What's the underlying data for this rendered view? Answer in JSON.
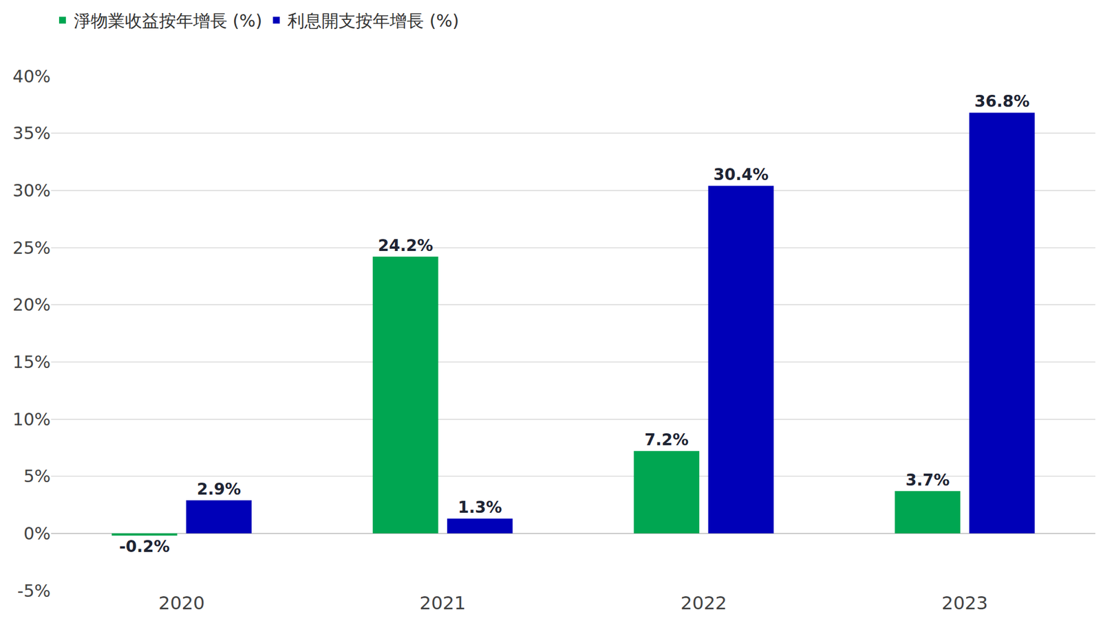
{
  "chart_data": {
    "type": "bar",
    "categories": [
      "2020",
      "2021",
      "2022",
      "2023"
    ],
    "series": [
      {
        "name": "淨物業收益按年增長 (%)",
        "color": "#00a651",
        "values": [
          -0.2,
          24.2,
          7.2,
          3.7
        ],
        "value_labels": [
          "-0.2%",
          "24.2%",
          "7.2%",
          "3.7%"
        ]
      },
      {
        "name": "利息開支按年增長 (%)",
        "color": "#0000b8",
        "values": [
          2.9,
          1.3,
          30.4,
          36.8
        ],
        "value_labels": [
          "2.9%",
          "1.3%",
          "30.4%",
          "36.8%"
        ]
      }
    ],
    "ylim": [
      -5,
      40
    ],
    "yticks": [
      {
        "value": -5,
        "label": "-5%"
      },
      {
        "value": 0,
        "label": "0%"
      },
      {
        "value": 5,
        "label": "5%"
      },
      {
        "value": 10,
        "label": "10%"
      },
      {
        "value": 15,
        "label": "15%"
      },
      {
        "value": 20,
        "label": "20%"
      },
      {
        "value": 25,
        "label": "25%"
      },
      {
        "value": 30,
        "label": "30%"
      },
      {
        "value": 35,
        "label": "35%"
      },
      {
        "value": 40,
        "label": "40%"
      }
    ],
    "grid": true,
    "legend": "top-left",
    "data_labels": true
  }
}
